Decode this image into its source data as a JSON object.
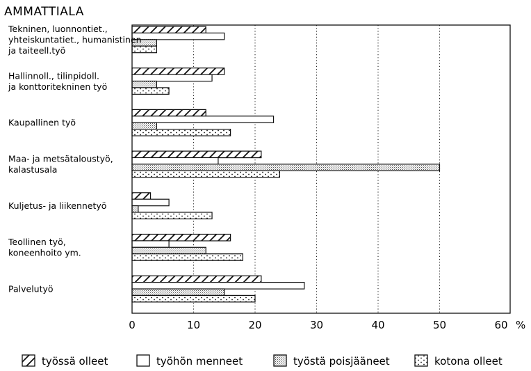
{
  "chart_data": {
    "type": "bar",
    "orientation": "horizontal",
    "title": "AMMATTIALA",
    "xlabel": "%",
    "xlim": [
      0,
      60
    ],
    "xticks": [
      "0",
      "10",
      "20",
      "30",
      "40",
      "50",
      "60"
    ],
    "grid": true,
    "legend_placement": "bottom",
    "categories": [
      [
        "Tekninen, luonnontiet.,",
        "yhteiskuntatiet., humanistinen",
        "ja taiteell.työ"
      ],
      [
        "Hallinnoll., tilinpidoll.",
        "ja konttoritekninen työ"
      ],
      [
        "Kaupallinen työ"
      ],
      [
        "Maa- ja metsätaloustyö,",
        "kalastusala"
      ],
      [
        "Kuljetus- ja liikennetyö"
      ],
      [
        "Teollinen työ,",
        "koneenhoito ym."
      ],
      [
        "Palvelutyö"
      ]
    ],
    "series": [
      {
        "name": "työssä olleet",
        "pattern": "hatch",
        "values": [
          12,
          15,
          12,
          21,
          3,
          16,
          21
        ]
      },
      {
        "name": "työhön menneet",
        "pattern": "empty",
        "values": [
          15,
          13,
          23,
          14,
          6,
          6,
          28
        ]
      },
      {
        "name": "työstä poisjääneet",
        "pattern": "fine-dots",
        "values": [
          4,
          4,
          4,
          50,
          1,
          12,
          15
        ]
      },
      {
        "name": "kotona olleet",
        "pattern": "dots",
        "values": [
          4,
          6,
          16,
          24,
          13,
          18,
          20
        ]
      }
    ]
  }
}
